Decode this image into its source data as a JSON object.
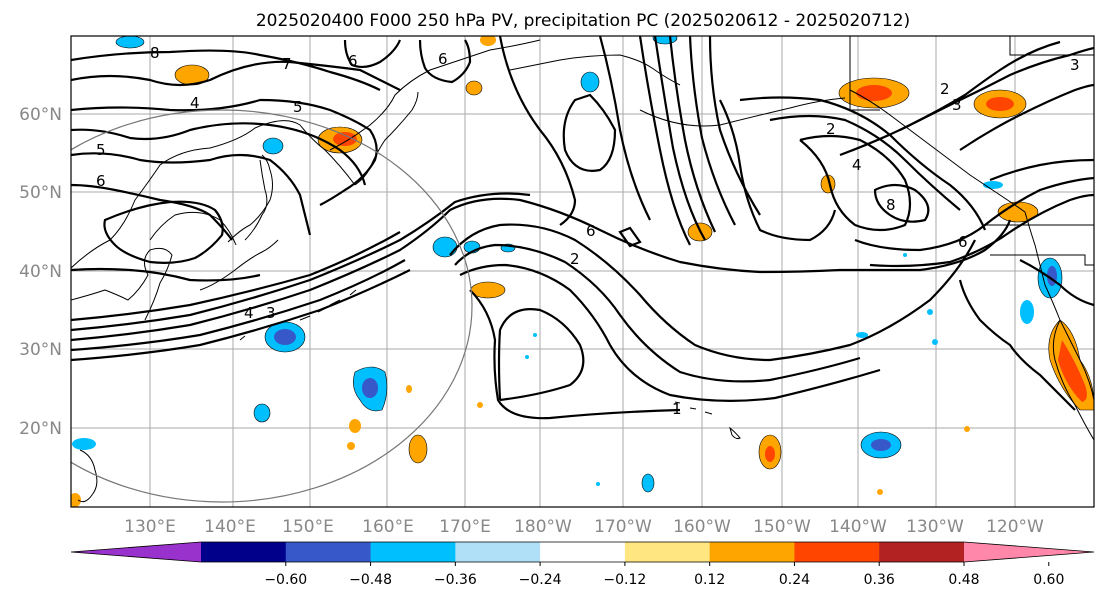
{
  "title": "2025020400 F000 250 hPa PV, precipitation PC (2025020612 - 2025020712)",
  "map": {
    "lat_labels": [
      "60°N",
      "50°N",
      "40°N",
      "30°N",
      "20°N"
    ],
    "lon_labels": [
      "130°E",
      "140°E",
      "150°E",
      "160°E",
      "170°E",
      "180°W",
      "170°W",
      "160°W",
      "150°W",
      "140°W",
      "130°W",
      "120°W"
    ],
    "contour_labels": [
      "8",
      "7",
      "6",
      "6",
      "5",
      "5",
      "6",
      "4",
      "4",
      "3",
      "6",
      "2",
      "1",
      "2",
      "4",
      "8",
      "6",
      "3",
      "2",
      "3"
    ]
  },
  "colorbar": {
    "ticks": [
      "−0.60",
      "−0.48",
      "−0.36",
      "−0.24",
      "−0.12",
      "0.12",
      "0.24",
      "0.36",
      "0.48",
      "0.60"
    ],
    "colors": [
      "#9932cc",
      "#00008b",
      "#3658c8",
      "#00bfff",
      "#b0e0f8",
      "#ffffff",
      "#ffe680",
      "#ffa500",
      "#ff4500",
      "#b22222",
      "#ff88aa"
    ]
  }
}
